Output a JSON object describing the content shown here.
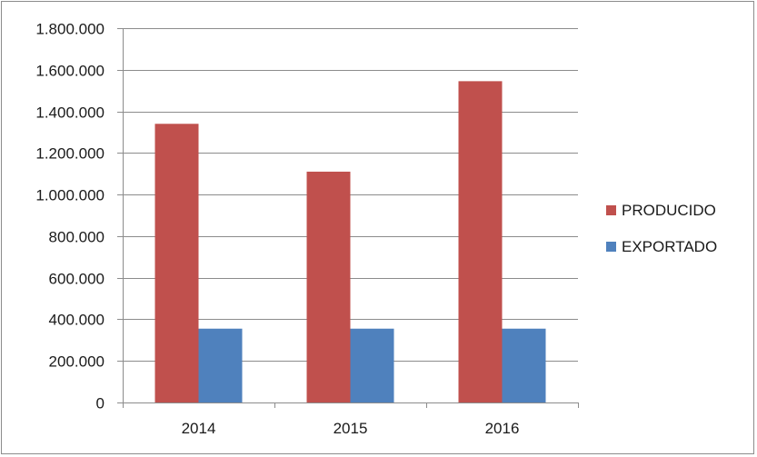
{
  "chart_data": {
    "type": "bar",
    "categories": [
      "2014",
      "2015",
      "2016"
    ],
    "series": [
      {
        "name": "PRODUCIDO",
        "color": "#c0504d",
        "values": [
          1340000,
          1110000,
          1545000
        ]
      },
      {
        "name": "EXPORTADO",
        "color": "#4f81bd",
        "values": [
          355000,
          355000,
          355000
        ]
      }
    ],
    "ylim": [
      0,
      1800000
    ],
    "yticks": [
      0,
      200000,
      400000,
      600000,
      800000,
      1000000,
      1200000,
      1400000,
      1600000,
      1800000
    ],
    "ytick_labels": [
      "0",
      "200.000",
      "400.000",
      "600.000",
      "800.000",
      "1.000.000",
      "1.200.000",
      "1.400.000",
      "1.600.000",
      "1.800.000"
    ],
    "grid": true,
    "legend": "right",
    "title": "",
    "xlabel": "",
    "ylabel": ""
  }
}
